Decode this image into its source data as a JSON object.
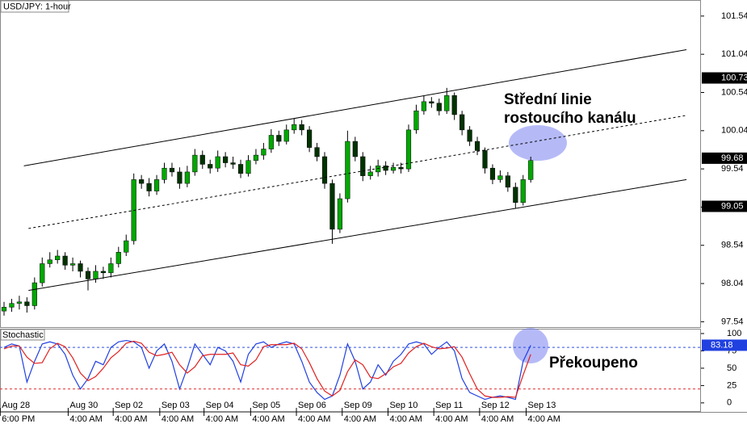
{
  "chart_data": [
    {
      "type": "candlestick",
      "title": "USD/JPY: 1-hour",
      "ohlc": [
        [
          97.68,
          97.8,
          97.62,
          97.73
        ],
        [
          97.73,
          97.84,
          97.67,
          97.78
        ],
        [
          97.78,
          97.88,
          97.7,
          97.8
        ],
        [
          97.8,
          97.86,
          97.66,
          97.75
        ],
        [
          97.75,
          98.12,
          97.7,
          98.05
        ],
        [
          98.05,
          98.38,
          98.0,
          98.3
        ],
        [
          98.3,
          98.45,
          98.25,
          98.35
        ],
        [
          98.35,
          98.48,
          98.3,
          98.4
        ],
        [
          98.4,
          98.45,
          98.22,
          98.28
        ],
        [
          98.28,
          98.38,
          98.2,
          98.3
        ],
        [
          98.3,
          98.34,
          98.12,
          98.2
        ],
        [
          98.2,
          98.25,
          97.95,
          98.1
        ],
        [
          98.1,
          98.28,
          98.05,
          98.2
        ],
        [
          98.2,
          98.26,
          98.1,
          98.18
        ],
        [
          98.18,
          98.38,
          98.12,
          98.3
        ],
        [
          98.3,
          98.52,
          98.25,
          98.45
        ],
        [
          98.45,
          98.68,
          98.4,
          98.6
        ],
        [
          98.6,
          99.48,
          98.55,
          99.4
        ],
        [
          99.4,
          99.46,
          99.28,
          99.35
        ],
        [
          99.35,
          99.42,
          99.18,
          99.25
        ],
        [
          99.25,
          99.46,
          99.2,
          99.4
        ],
        [
          99.4,
          99.62,
          99.35,
          99.55
        ],
        [
          99.55,
          99.62,
          99.44,
          99.5
        ],
        [
          99.5,
          99.56,
          99.28,
          99.35
        ],
        [
          99.35,
          99.58,
          99.3,
          99.5
        ],
        [
          99.5,
          99.8,
          99.45,
          99.72
        ],
        [
          99.72,
          99.78,
          99.54,
          99.6
        ],
        [
          99.6,
          99.66,
          99.48,
          99.55
        ],
        [
          99.55,
          99.78,
          99.5,
          99.7
        ],
        [
          99.7,
          99.76,
          99.56,
          99.62
        ],
        [
          99.62,
          99.7,
          99.54,
          99.6
        ],
        [
          99.6,
          99.66,
          99.42,
          99.48
        ],
        [
          99.48,
          99.72,
          99.44,
          99.65
        ],
        [
          99.65,
          99.8,
          99.6,
          99.72
        ],
        [
          99.72,
          99.88,
          99.66,
          99.8
        ],
        [
          99.8,
          100.06,
          99.75,
          99.98
        ],
        [
          99.98,
          100.04,
          99.84,
          99.9
        ],
        [
          99.9,
          100.12,
          99.86,
          100.05
        ],
        [
          100.05,
          100.2,
          100.0,
          100.12
        ],
        [
          100.12,
          100.18,
          99.98,
          100.05
        ],
        [
          100.05,
          100.1,
          99.76,
          99.82
        ],
        [
          99.82,
          99.88,
          99.64,
          99.7
        ],
        [
          99.7,
          99.76,
          99.28,
          99.35
        ],
        [
          99.35,
          99.4,
          98.56,
          98.75
        ],
        [
          98.75,
          99.22,
          98.7,
          99.15
        ],
        [
          99.15,
          100.04,
          99.1,
          99.9
        ],
        [
          99.9,
          99.96,
          99.64,
          99.7
        ],
        [
          99.7,
          99.76,
          99.38,
          99.45
        ],
        [
          99.45,
          99.58,
          99.4,
          99.5
        ],
        [
          99.5,
          99.66,
          99.44,
          99.58
        ],
        [
          99.58,
          99.64,
          99.46,
          99.52
        ],
        [
          99.52,
          99.62,
          99.48,
          99.56
        ],
        [
          99.56,
          99.62,
          99.48,
          99.54
        ],
        [
          99.54,
          100.12,
          99.5,
          100.05
        ],
        [
          100.05,
          100.38,
          100.0,
          100.3
        ],
        [
          100.3,
          100.5,
          100.25,
          100.42
        ],
        [
          100.42,
          100.48,
          100.34,
          100.4
        ],
        [
          100.4,
          100.46,
          100.24,
          100.3
        ],
        [
          100.3,
          100.6,
          100.26,
          100.5
        ],
        [
          100.5,
          100.54,
          100.18,
          100.25
        ],
        [
          100.25,
          100.3,
          99.98,
          100.05
        ],
        [
          100.05,
          100.1,
          99.84,
          99.9
        ],
        [
          99.9,
          99.96,
          99.72,
          99.78
        ],
        [
          99.78,
          99.82,
          99.48,
          99.55
        ],
        [
          99.55,
          99.6,
          99.34,
          99.4
        ],
        [
          99.4,
          99.52,
          99.36,
          99.45
        ],
        [
          99.45,
          99.5,
          99.24,
          99.3
        ],
        [
          99.3,
          99.36,
          99.02,
          99.1
        ],
        [
          99.1,
          99.46,
          99.06,
          99.4
        ],
        [
          99.4,
          99.7,
          99.36,
          99.65
        ]
      ],
      "up_color": "#00a800",
      "down_color": "#003300",
      "xlim": [
        -0.53,
        91.3
      ],
      "ylim": [
        97.47,
        101.75
      ],
      "yticks": [
        97.54,
        98.04,
        98.54,
        99.04,
        99.54,
        100.04,
        100.54,
        101.04,
        101.54
      ],
      "price_markers": [
        100.73,
        99.05
      ],
      "last_price": 99.68,
      "trendlines": [
        {
          "x": [
            2.6,
            89.4
          ],
          "y": [
            99.58,
            101.1
          ],
          "style": "solid"
        },
        {
          "x": [
            3.2,
            89.4
          ],
          "y": [
            98.76,
            100.24
          ],
          "style": "dashed"
        },
        {
          "x": [
            3.2,
            89.4
          ],
          "y": [
            97.95,
            99.4
          ],
          "style": "solid"
        }
      ],
      "annotations": [
        "Střední linie",
        "rostoucího kanálu"
      ],
      "grid": false
    },
    {
      "type": "line",
      "title": "Stochastic",
      "series": [
        {
          "color": "#2040e0",
          "values": [
            80,
            85,
            82,
            30,
            60,
            85,
            88,
            85,
            70,
            40,
            20,
            35,
            60,
            55,
            80,
            88,
            90,
            88,
            80,
            50,
            75,
            85,
            60,
            20,
            50,
            85,
            70,
            55,
            80,
            75,
            60,
            30,
            70,
            85,
            88,
            80,
            85,
            88,
            85,
            60,
            30,
            15,
            5,
            10,
            40,
            85,
            60,
            20,
            30,
            55,
            40,
            60,
            70,
            85,
            88,
            85,
            70,
            80,
            88,
            75,
            35,
            15,
            10,
            5,
            8,
            10,
            8,
            5,
            60,
            83.18
          ]
        },
        {
          "color": "#e02020",
          "values": [
            78,
            82,
            82,
            66,
            57,
            58,
            78,
            86,
            81,
            65,
            43,
            32,
            38,
            50,
            65,
            74,
            86,
            89,
            86,
            73,
            68,
            70,
            73,
            55,
            43,
            52,
            68,
            70,
            70,
            70,
            72,
            55,
            53,
            62,
            81,
            84,
            84,
            84,
            86,
            78,
            58,
            35,
            17,
            10,
            18,
            45,
            62,
            55,
            37,
            35,
            42,
            52,
            57,
            72,
            81,
            86,
            81,
            78,
            79,
            81,
            66,
            42,
            20,
            10,
            8,
            8,
            9,
            8,
            40,
            70
          ]
        }
      ],
      "ylim": [
        -13,
        107
      ],
      "yticks": [
        0,
        25,
        50,
        75,
        100
      ],
      "levels": [
        {
          "value": 80,
          "color": "#3050e0"
        },
        {
          "value": 20,
          "color": "#e03030"
        }
      ],
      "annotation": "Překoupeno",
      "xticks": [
        {
          "value": -0.5,
          "label": "Aug 28"
        },
        {
          "value": 8.4,
          "label": "Aug 30"
        },
        {
          "value": 14.3,
          "label": "Sep 02"
        },
        {
          "value": 20.4,
          "label": "Sep 03"
        },
        {
          "value": 26.2,
          "label": "Sep 04"
        },
        {
          "value": 32.3,
          "label": "Sep 05"
        },
        {
          "value": 38.3,
          "label": "Sep 06"
        },
        {
          "value": 44.3,
          "label": "Sep 09"
        },
        {
          "value": 50.3,
          "label": "Sep 10"
        },
        {
          "value": 56.3,
          "label": "Sep 11"
        },
        {
          "value": 62.3,
          "label": "Sep 12"
        },
        {
          "value": 68.4,
          "label": "Sep 13"
        }
      ],
      "xtick_sublabels": [
        "6:00 PM",
        "4:00 AM",
        "4:00 AM",
        "4:00 AM",
        "4:00 AM",
        "4:00 AM",
        "4:00 AM",
        "4:00 AM",
        "4:00 AM",
        "4:00 AM",
        "4:00 AM",
        "4:00 AM"
      ]
    }
  ]
}
